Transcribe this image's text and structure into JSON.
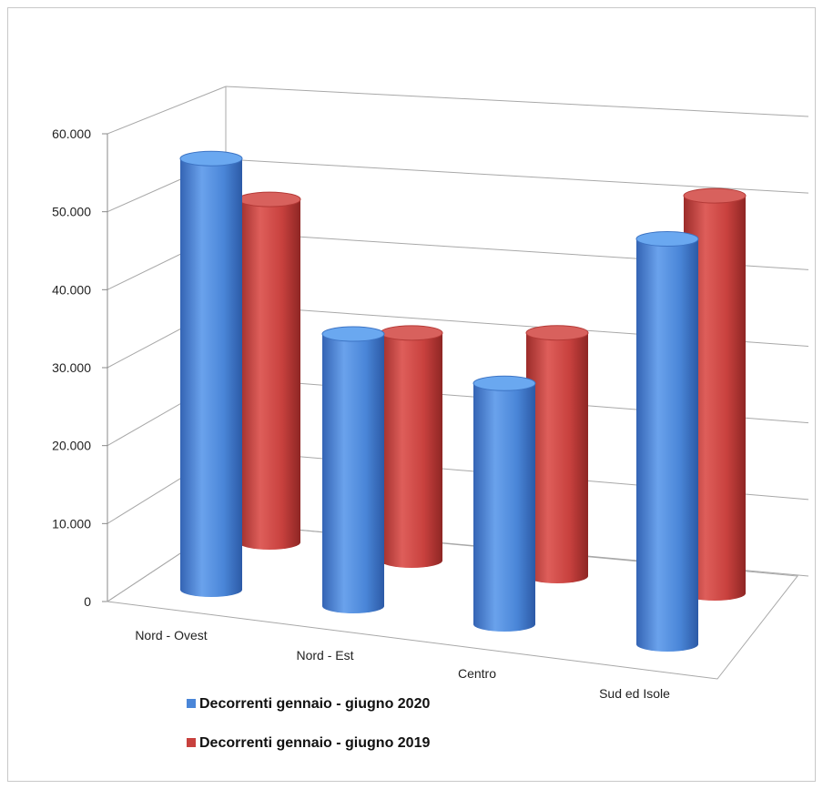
{
  "chart_data": {
    "type": "bar",
    "style": "3d-cylinder",
    "categories": [
      "Nord - Ovest",
      "Nord - Est",
      "Centro",
      "Sud ed Isole"
    ],
    "series": [
      {
        "name": "Decorrenti gennaio - giugno 2020",
        "color": "#4a86d8",
        "values": [
          55300,
          34900,
          30900,
          52000
        ]
      },
      {
        "name": "Decorrenti gennaio - giugno 2019",
        "color": "#c8413e",
        "values": [
          44000,
          29200,
          31200,
          51000
        ]
      }
    ],
    "ylim": [
      0,
      60000
    ],
    "yticks": [
      "0",
      "10.000",
      "20.000",
      "30.000",
      "40.000",
      "50.000",
      "60.000"
    ],
    "grid": true,
    "legend_position": "bottom-left"
  }
}
